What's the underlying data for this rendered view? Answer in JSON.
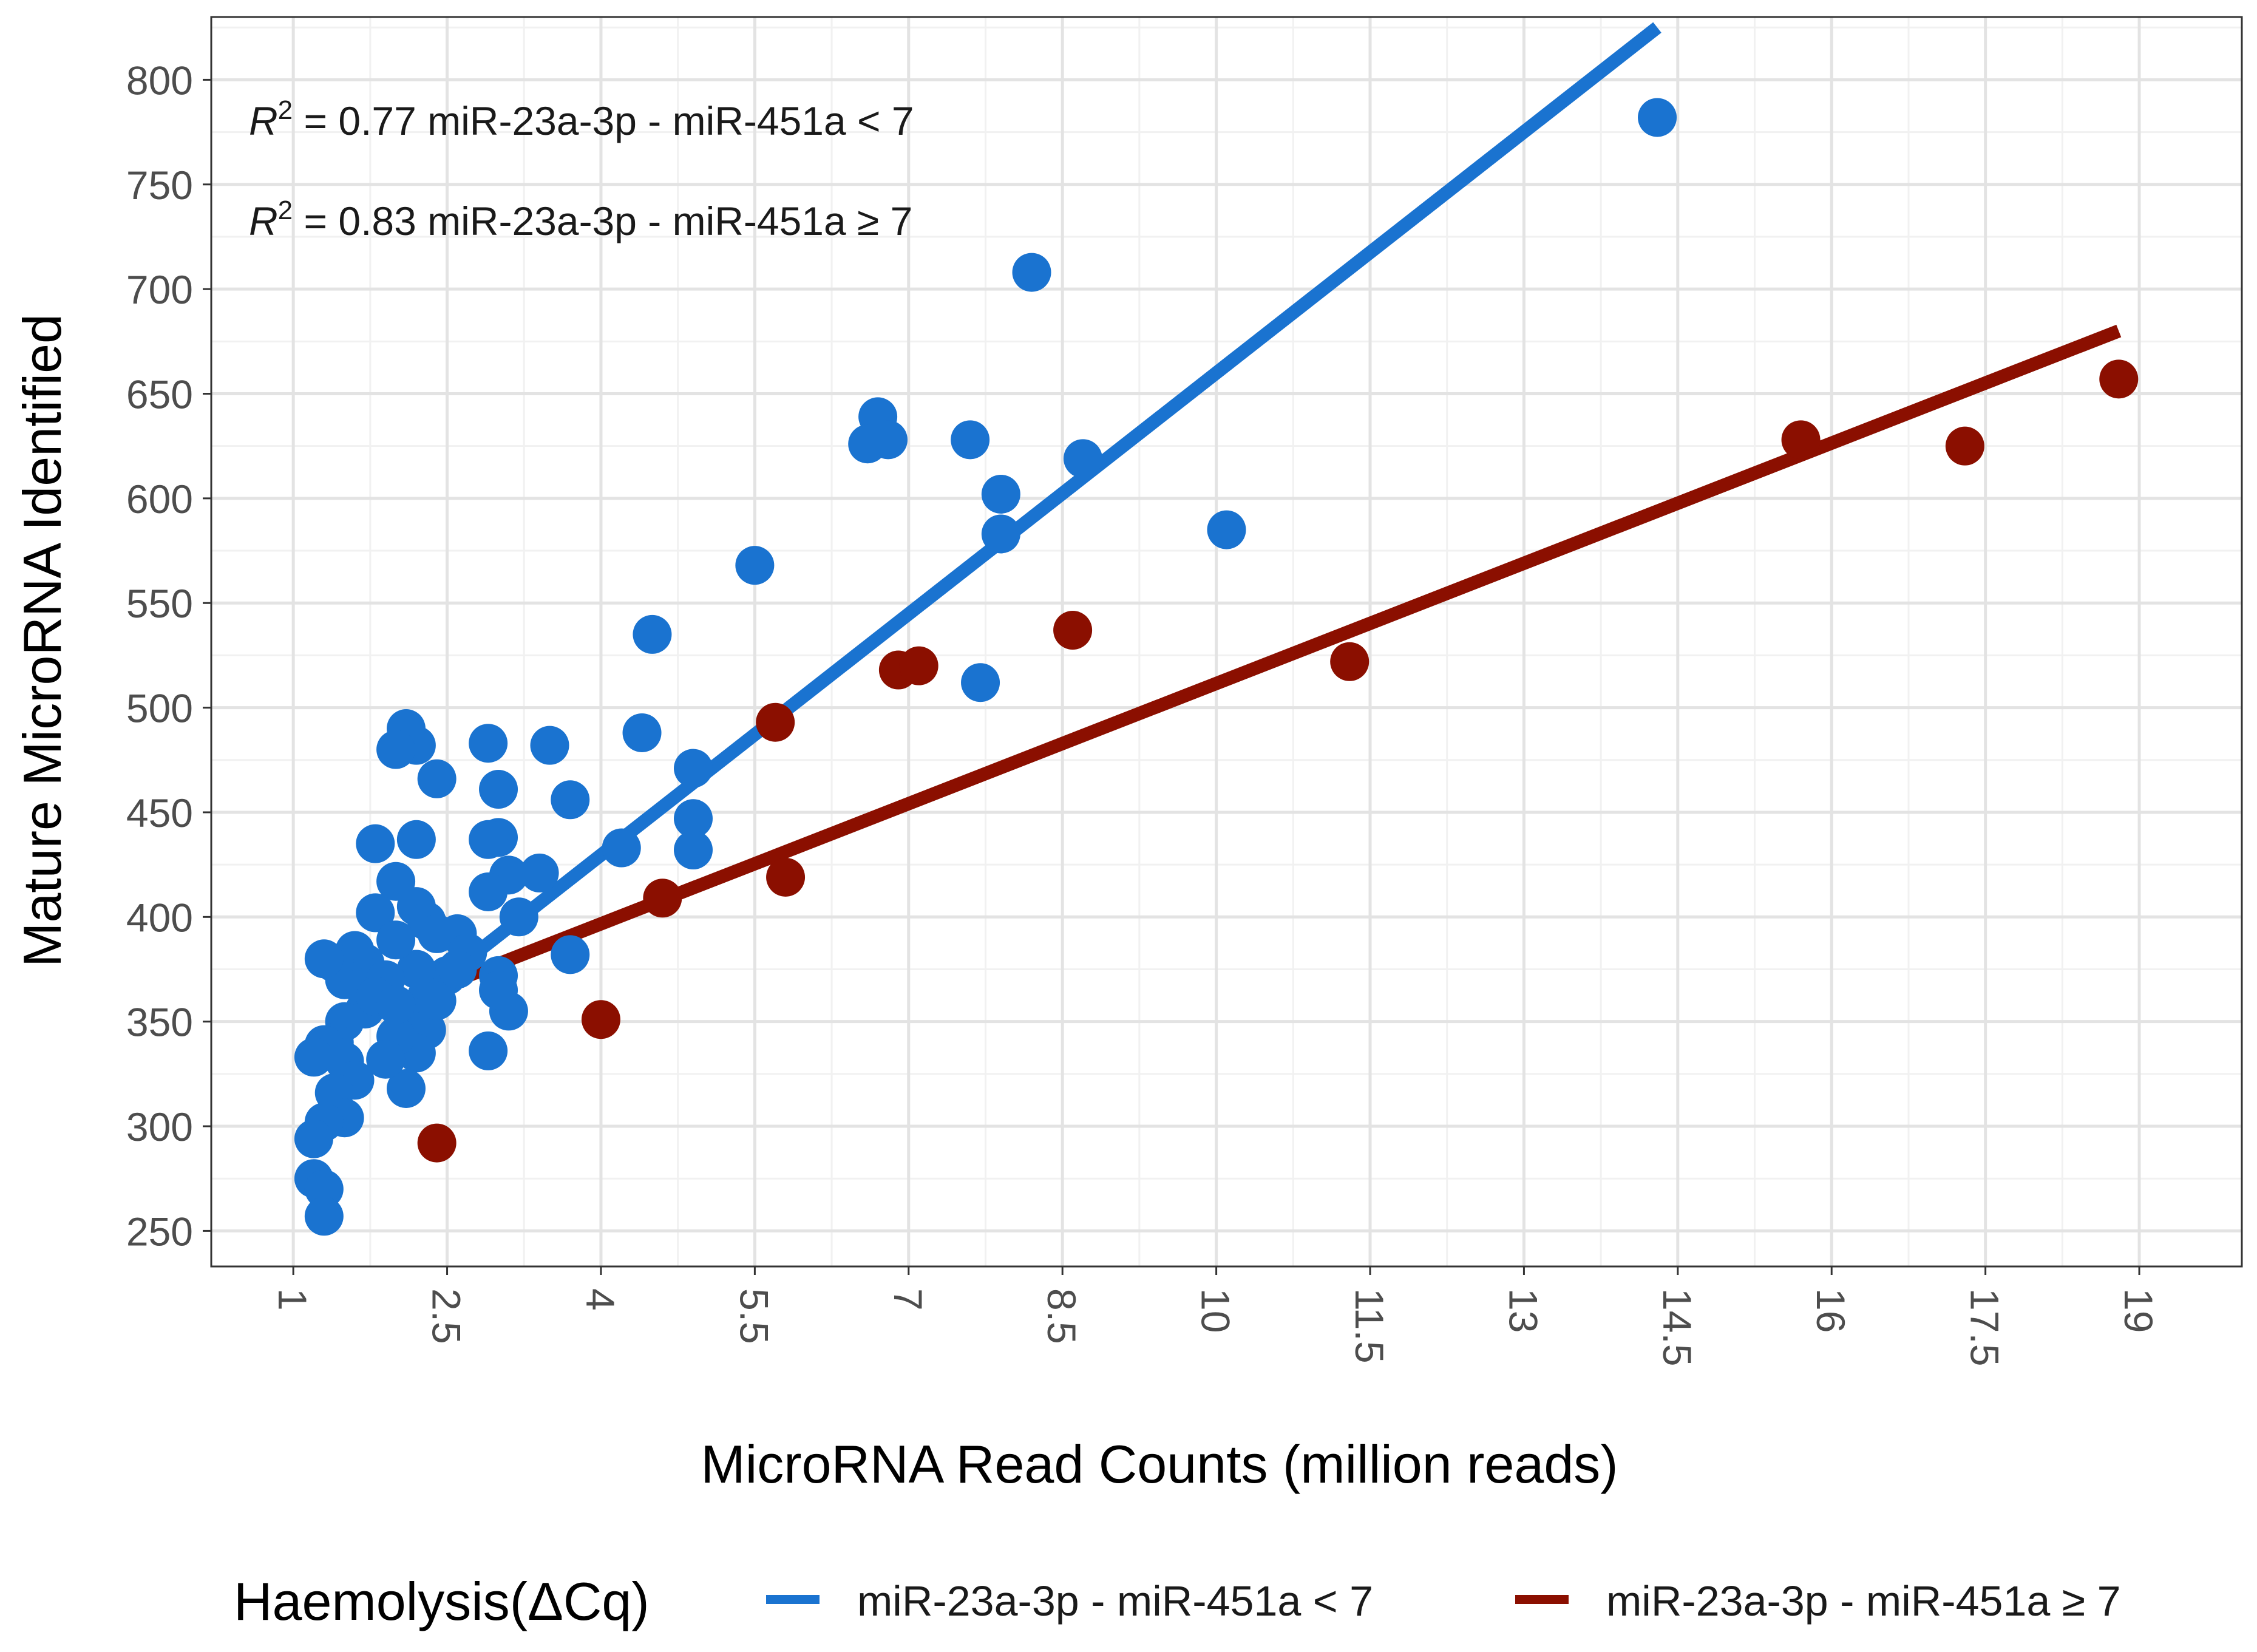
{
  "chart_data": {
    "type": "scatter",
    "title": "",
    "xlabel": "MicroRNA Read Counts (million reads)",
    "ylabel": "Mature MicroRNA Identified",
    "xlim": [
      0.2,
      20.0
    ],
    "ylim": [
      233,
      830
    ],
    "x_ticks": [
      1,
      2.5,
      4,
      5.5,
      7,
      8.5,
      10,
      11.5,
      13,
      14.5,
      16,
      17.5,
      19
    ],
    "x_tick_labels": [
      "1",
      "2.5",
      "4",
      "5.5",
      "7",
      "8.5",
      "10",
      "11.5",
      "13",
      "14.5",
      "16",
      "17.5",
      "19"
    ],
    "y_ticks": [
      250,
      300,
      350,
      400,
      450,
      500,
      550,
      600,
      650,
      700,
      750,
      800
    ],
    "y_tick_labels": [
      "250",
      "300",
      "350",
      "400",
      "450",
      "500",
      "550",
      "600",
      "650",
      "700",
      "750",
      "800"
    ],
    "grid": true,
    "legend": {
      "title": "Haemolysis(ΔCq)",
      "position": "bottom"
    },
    "annotations": [
      {
        "r_label": "R",
        "sup": "2",
        "text": " = 0.77 miR-23a-3p - miR-451a < 7"
      },
      {
        "r_label": "R",
        "sup": "2",
        "text": " = 0.83 miR-23a-3p - miR-451a ≥ 7"
      }
    ],
    "series": [
      {
        "name": "miR-23a-3p - miR-451a < 7",
        "color": "#1a73d0",
        "fit_line": {
          "x": [
            2.5,
            14.3
          ],
          "y": [
            372,
            825
          ]
        },
        "points": [
          [
            14.3,
            782
          ],
          [
            8.2,
            708
          ],
          [
            10.1,
            585
          ],
          [
            7.6,
            628
          ],
          [
            8.7,
            619
          ],
          [
            6.7,
            639
          ],
          [
            6.6,
            626
          ],
          [
            6.8,
            628
          ],
          [
            7.9,
            602
          ],
          [
            7.9,
            583
          ],
          [
            7.7,
            512
          ],
          [
            5.5,
            568
          ],
          [
            4.5,
            535
          ],
          [
            4.4,
            488
          ],
          [
            4.9,
            471
          ],
          [
            4.9,
            447
          ],
          [
            4.9,
            432
          ],
          [
            4.2,
            433
          ],
          [
            3.7,
            456
          ],
          [
            3.7,
            382
          ],
          [
            3.5,
            482
          ],
          [
            3.4,
            421
          ],
          [
            3.2,
            400
          ],
          [
            3.1,
            355
          ],
          [
            2.9,
            483
          ],
          [
            3.0,
            461
          ],
          [
            3.0,
            438
          ],
          [
            2.9,
            437
          ],
          [
            3.1,
            420
          ],
          [
            2.9,
            412
          ],
          [
            3.0,
            372
          ],
          [
            3.0,
            365
          ],
          [
            2.9,
            336
          ],
          [
            2.4,
            466
          ],
          [
            2.2,
            482
          ],
          [
            2.1,
            490
          ],
          [
            2.0,
            480
          ],
          [
            2.2,
            437
          ],
          [
            1.8,
            435
          ],
          [
            2.0,
            417
          ],
          [
            2.2,
            405
          ],
          [
            2.3,
            398
          ],
          [
            2.6,
            392
          ],
          [
            2.4,
            392
          ],
          [
            2.5,
            372
          ],
          [
            2.2,
            375
          ],
          [
            2.3,
            362
          ],
          [
            2.1,
            350
          ],
          [
            2.3,
            346
          ],
          [
            2.4,
            360
          ],
          [
            2.2,
            335
          ],
          [
            2.1,
            318
          ],
          [
            1.8,
            402
          ],
          [
            1.7,
            378
          ],
          [
            1.6,
            384
          ],
          [
            1.5,
            370
          ],
          [
            1.4,
            378
          ],
          [
            1.3,
            380
          ],
          [
            1.9,
            370
          ],
          [
            1.7,
            356
          ],
          [
            1.5,
            350
          ],
          [
            1.4,
            340
          ],
          [
            1.3,
            339
          ],
          [
            1.2,
            333
          ],
          [
            1.5,
            331
          ],
          [
            1.6,
            322
          ],
          [
            1.4,
            316
          ],
          [
            1.5,
            304
          ],
          [
            1.3,
            302
          ],
          [
            1.2,
            294
          ],
          [
            1.2,
            275
          ],
          [
            1.3,
            270
          ],
          [
            1.3,
            257
          ],
          [
            2.0,
            343
          ],
          [
            1.9,
            332
          ],
          [
            2.0,
            389
          ],
          [
            2.7,
            383
          ],
          [
            2.6,
            375
          ],
          [
            1.8,
            362
          ],
          [
            2.0,
            358
          ]
        ]
      },
      {
        "name": "miR-23a-3p - miR-451a ≥ 7",
        "color": "#8b0f00",
        "fit_line": {
          "x": [
            2.5,
            18.8
          ],
          "y": [
            368,
            680
          ]
        },
        "points": [
          [
            18.8,
            657
          ],
          [
            17.3,
            625
          ],
          [
            15.7,
            628
          ],
          [
            11.3,
            522
          ],
          [
            8.6,
            537
          ],
          [
            6.9,
            518
          ],
          [
            7.1,
            520
          ],
          [
            5.7,
            493
          ],
          [
            5.8,
            419
          ],
          [
            4.6,
            409
          ],
          [
            4.0,
            351
          ],
          [
            2.4,
            292
          ]
        ]
      }
    ]
  }
}
